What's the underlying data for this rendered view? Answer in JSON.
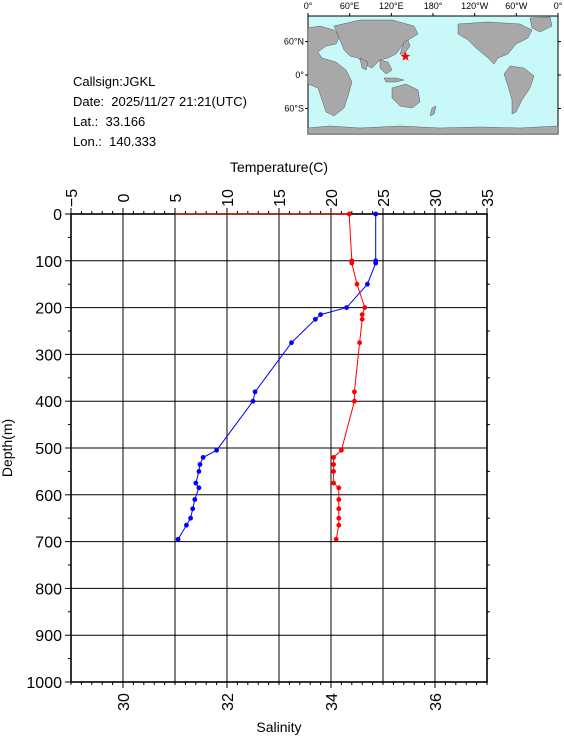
{
  "info": {
    "callsign": "Callsign:JGKL",
    "date": "Date:  2025/11/27 21:21(UTC)",
    "lat": "Lat.:  33.166",
    "lon": "Lon.:  140.333"
  },
  "map": {
    "lon_labels": [
      "0°",
      "60°E",
      "120°E",
      "180°",
      "120°W",
      "60°W",
      "0°"
    ],
    "lat_labels": [
      "60°N",
      "0°",
      "60°S"
    ],
    "marker": {
      "lat": 33.166,
      "lon": 140.333,
      "color": "#ff0000"
    },
    "ocean_color": "#c8f8f8",
    "land_color": "#a8a8a8"
  },
  "chart_data": {
    "type": "line",
    "depth_axis": {
      "label": "Depth(m)",
      "range": [
        0,
        1000
      ],
      "ticks": [
        0,
        100,
        200,
        300,
        400,
        500,
        600,
        700,
        800,
        900,
        1000
      ]
    },
    "temperature_axis": {
      "label": "Temperature(C)",
      "range": [
        -5,
        35
      ],
      "ticks": [
        -5,
        0,
        5,
        10,
        15,
        20,
        25,
        30,
        35
      ],
      "tick_labels": [
        "−5",
        "0",
        "5",
        "10",
        "15",
        "20",
        "25",
        "30",
        "35"
      ]
    },
    "salinity_axis": {
      "label": "Salinity",
      "range": [
        29,
        37
      ],
      "ticks": [
        30,
        32,
        34,
        36
      ],
      "tick_labels": [
        "30",
        "32",
        "34",
        "36"
      ]
    },
    "grid": true,
    "series": [
      {
        "color": "#0000ff",
        "axis": "temperature",
        "points": [
          [
            0,
            24.3
          ],
          [
            100,
            24.3
          ],
          [
            105,
            24.3
          ],
          [
            150,
            23.5
          ],
          [
            200,
            21.5
          ],
          [
            215,
            19
          ],
          [
            225,
            18.5
          ],
          [
            275,
            16.2
          ],
          [
            380,
            12.7
          ],
          [
            400,
            12.5
          ],
          [
            505,
            9
          ],
          [
            520,
            7.7
          ],
          [
            535,
            7.4
          ],
          [
            550,
            7.3
          ],
          [
            575,
            7
          ],
          [
            585,
            7.3
          ],
          [
            610,
            6.9
          ],
          [
            630,
            6.7
          ],
          [
            650,
            6.5
          ],
          [
            665,
            6.1
          ],
          [
            695,
            5.3
          ]
        ]
      },
      {
        "color": "#ff0000",
        "axis": "salinity",
        "points": [
          [
            0,
            34.35
          ],
          [
            100,
            34.4
          ],
          [
            105,
            34.4
          ],
          [
            150,
            34.5
          ],
          [
            200,
            34.65
          ],
          [
            215,
            34.6
          ],
          [
            225,
            34.6
          ],
          [
            275,
            34.55
          ],
          [
            380,
            34.45
          ],
          [
            400,
            34.45
          ],
          [
            505,
            34.2
          ],
          [
            520,
            34.05
          ],
          [
            535,
            34.05
          ],
          [
            550,
            34.05
          ],
          [
            575,
            34.05
          ],
          [
            585,
            34.15
          ],
          [
            610,
            34.15
          ],
          [
            630,
            34.15
          ],
          [
            650,
            34.15
          ],
          [
            665,
            34.15
          ],
          [
            695,
            34.1
          ]
        ],
        "surface_lead": {
          "from_salinity": 31,
          "depth": 0
        }
      }
    ]
  }
}
